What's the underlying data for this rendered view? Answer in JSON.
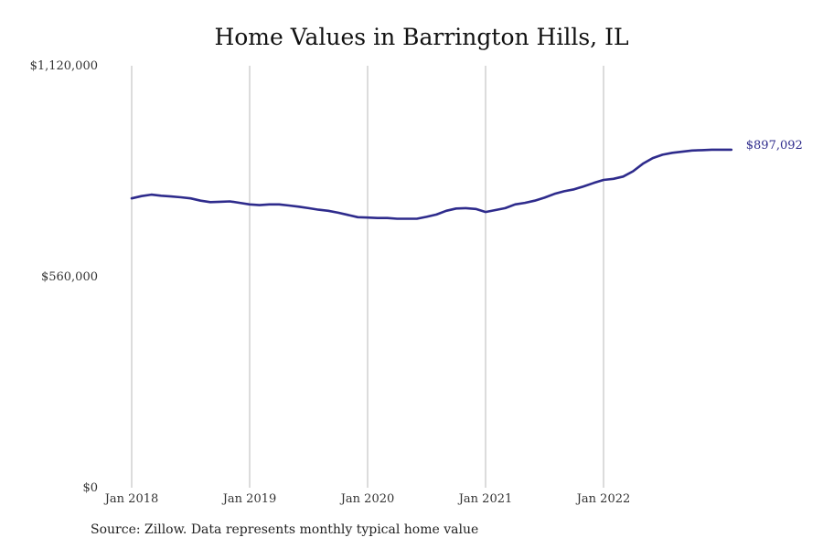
{
  "chart_data": {
    "type": "line",
    "title": "Home Values in Barrington Hills, IL",
    "source": "Source: Zillow. Data represents monthly typical home value",
    "ylim": [
      0,
      1120000
    ],
    "yticks": [
      {
        "value": 0,
        "label": "$0"
      },
      {
        "value": 560000,
        "label": "$560,000"
      },
      {
        "value": 1120000,
        "label": "$1,120,000"
      }
    ],
    "xticks": [
      {
        "date": "2018-01",
        "label": "Jan 2018"
      },
      {
        "date": "2019-01",
        "label": "Jan 2019"
      },
      {
        "date": "2020-01",
        "label": "Jan 2020"
      },
      {
        "date": "2021-01",
        "label": "Jan 2021"
      },
      {
        "date": "2022-01",
        "label": "Jan 2022"
      }
    ],
    "grid": "vertical",
    "line_color": "#2e2b8c",
    "end_label": "$897,092",
    "series": [
      {
        "x": [
          "2018-01",
          "2018-02",
          "2018-03",
          "2018-04",
          "2018-05",
          "2018-06",
          "2018-07",
          "2018-08",
          "2018-09",
          "2018-10",
          "2018-11",
          "2018-12",
          "2019-01",
          "2019-02",
          "2019-03",
          "2019-04",
          "2019-05",
          "2019-06",
          "2019-07",
          "2019-08",
          "2019-09",
          "2019-10",
          "2019-11",
          "2019-12",
          "2020-01",
          "2020-02",
          "2020-03",
          "2020-04",
          "2020-05",
          "2020-06",
          "2020-07",
          "2020-08",
          "2020-09",
          "2020-10",
          "2020-11",
          "2020-12",
          "2021-01",
          "2021-02",
          "2021-03",
          "2021-04",
          "2021-05",
          "2021-06",
          "2021-07",
          "2021-08",
          "2021-09",
          "2021-10",
          "2021-11",
          "2021-12",
          "2022-01",
          "2022-02",
          "2022-03",
          "2022-04",
          "2022-05",
          "2022-06",
          "2022-07",
          "2022-08",
          "2022-09",
          "2022-10",
          "2022-11",
          "2022-12",
          "2023-01",
          "2023-02"
        ],
        "y": [
          768000,
          774000,
          778000,
          775000,
          773000,
          771000,
          768000,
          762000,
          758000,
          759000,
          760000,
          756000,
          752000,
          750000,
          752000,
          752000,
          749000,
          746000,
          742000,
          738000,
          735000,
          730000,
          724000,
          718000,
          717000,
          716000,
          716000,
          714000,
          714000,
          714000,
          719000,
          725000,
          735000,
          741000,
          742000,
          740000,
          732000,
          737000,
          742000,
          752000,
          756000,
          762000,
          770000,
          780000,
          787000,
          792000,
          800000,
          809000,
          817000,
          820000,
          826000,
          840000,
          860000,
          875000,
          884000,
          889000,
          892000,
          895000,
          896000,
          897092,
          897092,
          897092
        ]
      }
    ]
  }
}
